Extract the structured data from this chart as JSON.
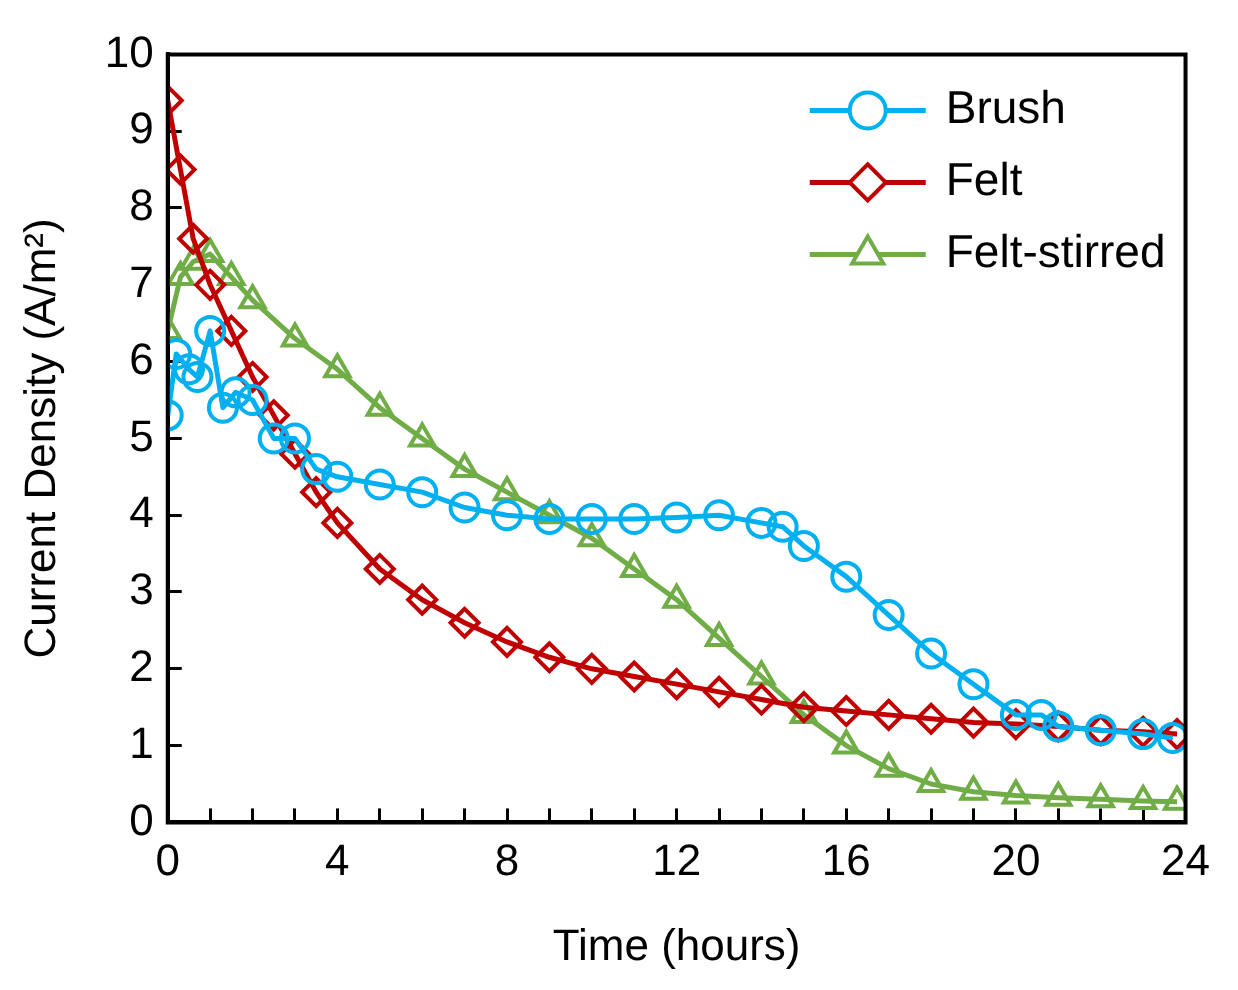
{
  "chart_data": {
    "type": "line",
    "xlabel": "Time (hours)",
    "ylabel": "Current Density (A/m²)",
    "xlim": [
      0,
      24
    ],
    "ylim": [
      0,
      10
    ],
    "xticks": [
      0,
      {
        "value": 1,
        "label": null
      },
      {
        "value": 2,
        "label": null
      },
      {
        "value": 3,
        "label": null
      },
      4,
      {
        "value": 5,
        "label": null
      },
      {
        "value": 6,
        "label": null
      },
      {
        "value": 7,
        "label": null
      },
      8,
      {
        "value": 9,
        "label": null
      },
      {
        "value": 10,
        "label": null
      },
      {
        "value": 11,
        "label": null
      },
      12,
      {
        "value": 13,
        "label": null
      },
      {
        "value": 14,
        "label": null
      },
      {
        "value": 15,
        "label": null
      },
      16,
      {
        "value": 17,
        "label": null
      },
      {
        "value": 18,
        "label": null
      },
      {
        "value": 19,
        "label": null
      },
      20,
      {
        "value": 21,
        "label": null
      },
      {
        "value": 22,
        "label": null
      },
      {
        "value": 23,
        "label": null
      },
      24
    ],
    "yticks": [
      0,
      1,
      2,
      3,
      4,
      5,
      6,
      7,
      8,
      9,
      10
    ],
    "grid": false,
    "legend": "top right",
    "line_style": "solid",
    "series": [
      {
        "name": "Brush",
        "color": "#00b0f0",
        "marker": "circle",
        "x": [
          0,
          0.2,
          0.5,
          0.7,
          1,
          1.3,
          1.6,
          2,
          2.5,
          3,
          3.5,
          4,
          5,
          6,
          7,
          8,
          9,
          10,
          11,
          12,
          13,
          14,
          14.5,
          15,
          16,
          17,
          18,
          19,
          20,
          20.6,
          21,
          22,
          23,
          23.7
        ],
        "values": [
          5.3,
          6.1,
          5.9,
          5.8,
          6.4,
          5.4,
          5.6,
          5.5,
          5,
          5,
          4.6,
          4.5,
          4.4,
          4.3,
          4.1,
          4,
          3.95,
          3.95,
          3.95,
          3.97,
          4,
          3.9,
          3.85,
          3.6,
          3.2,
          2.7,
          2.2,
          1.8,
          1.4,
          1.4,
          1.25,
          1.2,
          1.15,
          1.1
        ]
      },
      {
        "name": "Felt",
        "color": "#c00000",
        "marker": "diamond",
        "x": [
          0,
          0.3,
          0.6,
          1,
          1.5,
          2,
          2.5,
          3,
          3.5,
          4,
          5,
          6,
          7,
          8,
          9,
          10,
          11,
          12,
          13,
          14,
          15,
          16,
          17,
          18,
          19,
          20,
          21,
          22,
          23,
          23.8
        ],
        "values": [
          9.4,
          8.5,
          7.6,
          7,
          6.4,
          5.8,
          5.3,
          4.8,
          4.3,
          3.9,
          3.3,
          2.9,
          2.6,
          2.35,
          2.15,
          2,
          1.9,
          1.8,
          1.7,
          1.6,
          1.5,
          1.45,
          1.4,
          1.35,
          1.3,
          1.28,
          1.25,
          1.2,
          1.18,
          1.15
        ]
      },
      {
        "name": "Felt-stirred",
        "color": "#70ad47",
        "marker": "triangle",
        "x": [
          0,
          0.3,
          0.6,
          1,
          1.5,
          2,
          3,
          4,
          5,
          6,
          7,
          8,
          9,
          10,
          11,
          12,
          13,
          14,
          15,
          16,
          17,
          18,
          19,
          20,
          21,
          22,
          23,
          23.8
        ],
        "values": [
          6.4,
          7.1,
          7.3,
          7.4,
          7.1,
          6.8,
          6.3,
          5.9,
          5.4,
          5,
          4.6,
          4.3,
          4,
          3.7,
          3.3,
          2.9,
          2.4,
          1.9,
          1.4,
          1,
          0.7,
          0.5,
          0.4,
          0.35,
          0.32,
          0.3,
          0.28,
          0.27
        ]
      }
    ]
  }
}
